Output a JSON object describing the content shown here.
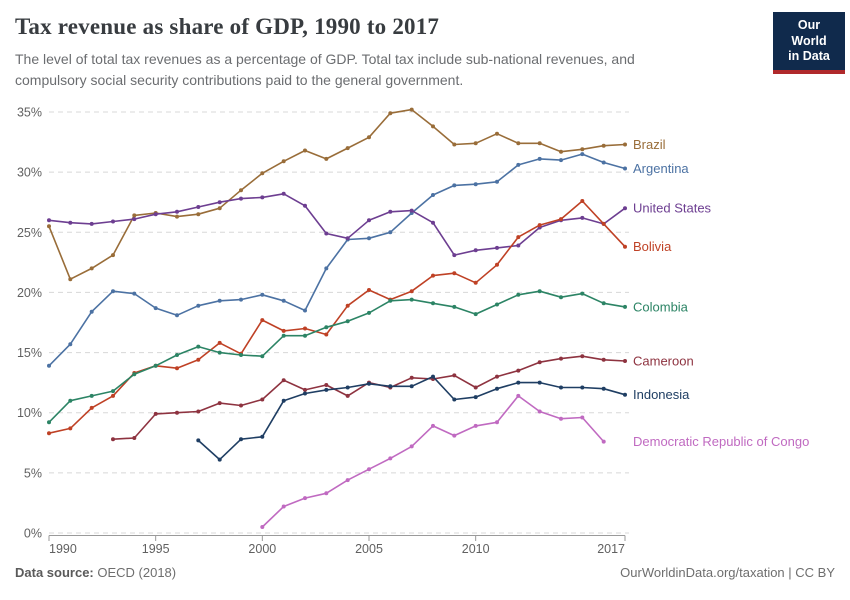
{
  "header": {
    "title": "Tax revenue as share of GDP, 1990 to 2017",
    "subtitle_lines": [
      "The level of total tax revenues as a percentage of GDP. Total tax include sub-national revenues, and",
      "compulsory social security contributions paid to the general government."
    ],
    "logo": {
      "line1": "Our World",
      "line2": "in Data",
      "bg_color": "#102A4C",
      "stripe_color": "#B0292B",
      "text_color": "#FFFFFF"
    }
  },
  "footer": {
    "source_label": "Data source:",
    "source_value": " OECD (2018)",
    "credit": "OurWorldinData.org/taxation | CC BY"
  },
  "chart_data": {
    "type": "line",
    "title": "Tax revenue as share of GDP, 1990 to 2017",
    "xlabel": "",
    "ylabel": "",
    "xlim": [
      1990,
      2017
    ],
    "ylim": [
      0,
      35
    ],
    "x_ticks": [
      1990,
      1995,
      2000,
      2005,
      2010,
      2017
    ],
    "y_ticks": [
      0,
      5,
      10,
      15,
      20,
      25,
      30,
      35
    ],
    "y_tick_suffix": "%",
    "grid": "horizontal-dashed",
    "grid_color": "#d8d8d8",
    "axis_color": "#9a9a9a",
    "tick_label_color": "#616161",
    "legend_position": "labels-at-line-ends-right",
    "series": [
      {
        "name": "Brazil",
        "color": "#996D39",
        "start_year": 1990,
        "values": [
          25.5,
          21.1,
          22.0,
          23.1,
          26.4,
          26.6,
          26.3,
          26.5,
          27.0,
          28.5,
          29.9,
          30.9,
          31.8,
          31.1,
          32.0,
          32.9,
          34.9,
          35.2,
          33.8,
          32.3,
          32.4,
          33.2,
          32.4,
          32.4,
          31.7,
          31.9,
          32.2,
          32.3
        ]
      },
      {
        "name": "Argentina",
        "color": "#4C72A3",
        "start_year": 1990,
        "values": [
          13.9,
          15.7,
          18.4,
          20.1,
          19.9,
          18.7,
          18.1,
          18.9,
          19.3,
          19.4,
          19.8,
          19.3,
          18.5,
          22.0,
          24.4,
          24.5,
          25.0,
          26.6,
          28.1,
          28.9,
          29.0,
          29.2,
          30.6,
          31.1,
          31.0,
          31.5,
          30.8,
          30.3
        ]
      },
      {
        "name": "United States",
        "color": "#6D3E91",
        "start_year": 1990,
        "values": [
          26.0,
          25.8,
          25.7,
          25.9,
          26.1,
          26.5,
          26.7,
          27.1,
          27.5,
          27.8,
          27.9,
          28.2,
          27.2,
          24.9,
          24.5,
          26.0,
          26.7,
          26.8,
          25.8,
          23.1,
          23.5,
          23.7,
          23.9,
          25.4,
          26.0,
          26.2,
          25.7,
          27.0
        ]
      },
      {
        "name": "Bolivia",
        "color": "#BF4125",
        "start_year": 1990,
        "values": [
          8.3,
          8.7,
          10.4,
          11.4,
          13.3,
          13.9,
          13.7,
          14.4,
          15.8,
          14.9,
          17.7,
          16.8,
          17.0,
          16.5,
          18.9,
          20.2,
          19.4,
          20.1,
          21.4,
          21.6,
          20.8,
          22.3,
          24.6,
          25.6,
          26.1,
          27.6,
          25.7,
          23.8
        ]
      },
      {
        "name": "Colombia",
        "color": "#2C8465",
        "start_year": 1990,
        "values": [
          9.2,
          11.0,
          11.4,
          11.8,
          13.2,
          13.9,
          14.8,
          15.5,
          15.0,
          14.8,
          14.7,
          16.4,
          16.4,
          17.1,
          17.6,
          18.3,
          19.3,
          19.4,
          19.1,
          18.8,
          18.2,
          19.0,
          19.8,
          20.1,
          19.6,
          19.9,
          19.1,
          18.8
        ]
      },
      {
        "name": "Cameroon",
        "color": "#8E3340",
        "start_year": 1993,
        "values": [
          7.8,
          7.9,
          9.9,
          10.0,
          10.1,
          10.8,
          10.6,
          11.1,
          12.7,
          11.9,
          12.3,
          11.4,
          12.5,
          12.1,
          12.9,
          12.8,
          13.1,
          12.1,
          13.0,
          13.5,
          14.2,
          14.5,
          14.7,
          14.4,
          14.3
        ]
      },
      {
        "name": "Indonesia",
        "color": "#1F3E63",
        "start_year": 1997,
        "values": [
          7.7,
          6.1,
          7.8,
          8.0,
          11.0,
          11.6,
          11.9,
          12.1,
          12.4,
          12.2,
          12.2,
          13.0,
          11.1,
          11.3,
          12.0,
          12.5,
          12.5,
          12.1,
          12.1,
          12.0,
          11.5
        ]
      },
      {
        "name": "Democratic Republic of Congo",
        "color": "#C06AC1",
        "start_year": 2000,
        "values": [
          0.5,
          2.2,
          2.9,
          3.3,
          4.4,
          5.3,
          6.2,
          7.2,
          8.9,
          8.1,
          8.9,
          9.2,
          11.4,
          10.1,
          9.5,
          9.6,
          7.6
        ]
      }
    ]
  }
}
